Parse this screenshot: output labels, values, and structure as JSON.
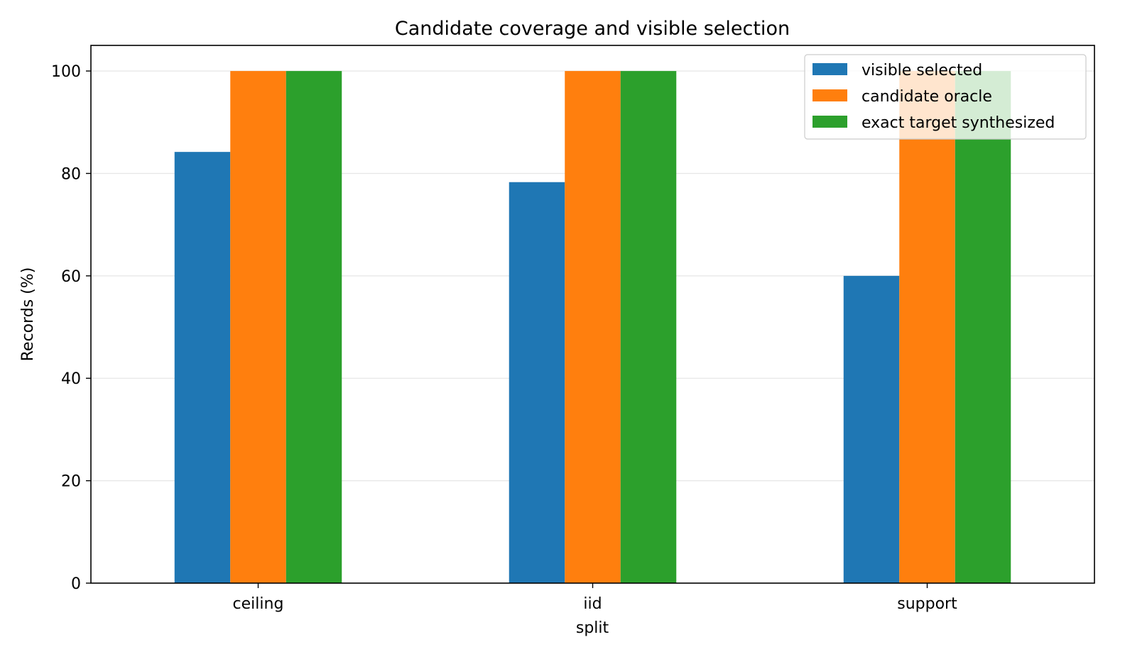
{
  "chart_data": {
    "type": "bar",
    "title": "Candidate coverage and visible selection",
    "xlabel": "split",
    "ylabel": "Records (%)",
    "categories": [
      "ceiling",
      "iid",
      "support"
    ],
    "series": [
      {
        "name": "visible selected",
        "color": "#1f77b4",
        "values": [
          84.2,
          78.3,
          60.0
        ]
      },
      {
        "name": "candidate oracle",
        "color": "#ff7f0e",
        "values": [
          100,
          100,
          100
        ]
      },
      {
        "name": "exact target synthesized",
        "color": "#2ca02c",
        "values": [
          100,
          100,
          100
        ]
      }
    ],
    "ylim": [
      0,
      105
    ],
    "yticks": [
      0,
      20,
      40,
      60,
      80,
      100
    ],
    "grid": "horizontal",
    "legend_position": "top-right"
  }
}
